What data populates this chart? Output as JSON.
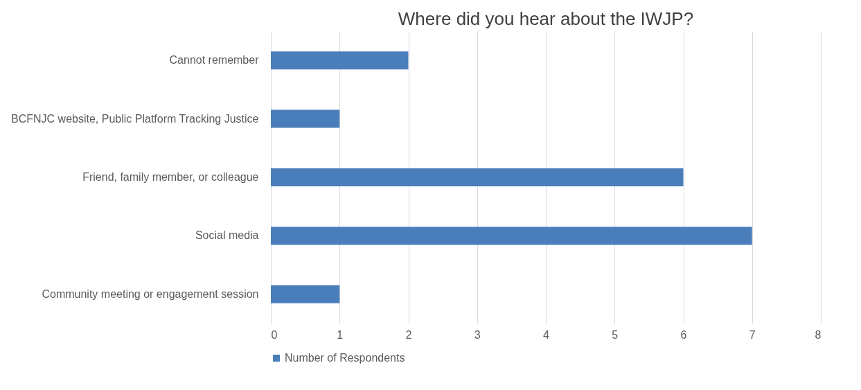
{
  "chart_data": {
    "type": "bar",
    "orientation": "horizontal",
    "title": "Where did you hear about the IWJP?",
    "categories": [
      "Cannot remember",
      "BCFNJC website, Public Platform Tracking Justice",
      "Friend, family member, or colleague",
      "Social media",
      "Community meeting or engagement session"
    ],
    "series": [
      {
        "name": "Number of Respondents",
        "color": "#4a7ebb",
        "values": [
          2,
          1,
          6,
          7,
          1
        ]
      }
    ],
    "xlim": [
      0,
      8
    ],
    "xticks": [
      0,
      1,
      2,
      3,
      4,
      5,
      6,
      7,
      8
    ],
    "grid": "x",
    "legend": "bottom"
  }
}
